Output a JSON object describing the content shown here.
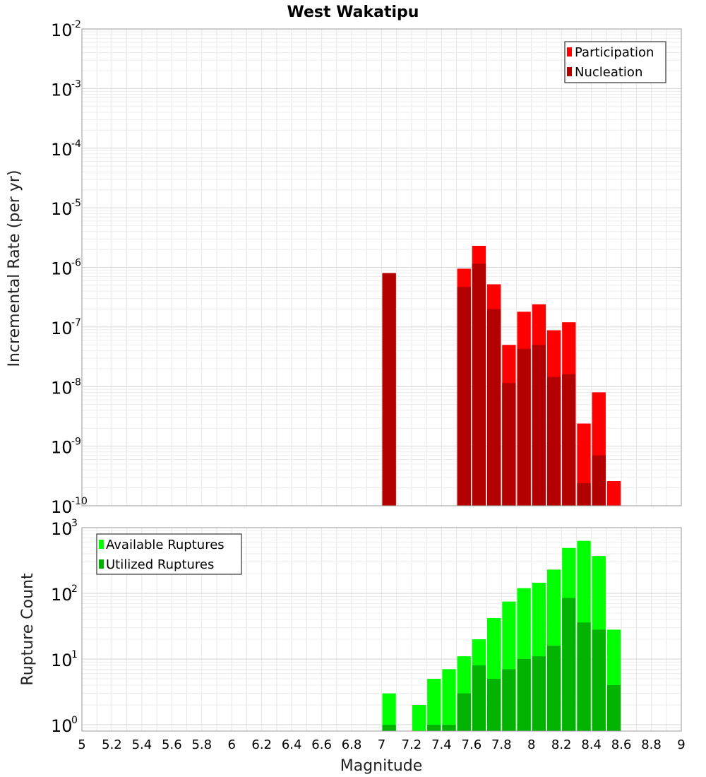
{
  "chart_data": [
    {
      "type": "bar",
      "title": "West Wakatipu",
      "xlabel": "",
      "ylabel": "Incremental Rate (per yr)",
      "yscale": "log",
      "xlim": [
        5,
        9
      ],
      "ylim": [
        1e-10,
        0.01
      ],
      "grid": true,
      "legend_position": "top-right",
      "y_tick_labels": [
        {
          "base": "10",
          "exp": "-2"
        },
        {
          "base": "10",
          "exp": "-3"
        },
        {
          "base": "10",
          "exp": "-4"
        },
        {
          "base": "10",
          "exp": "-5"
        },
        {
          "base": "10",
          "exp": "-6"
        },
        {
          "base": "10",
          "exp": "-7"
        },
        {
          "base": "10",
          "exp": "-8"
        },
        {
          "base": "10",
          "exp": "-9"
        },
        {
          "base": "10",
          "exp": "-10"
        }
      ],
      "x": [
        7.05,
        7.55,
        7.65,
        7.75,
        7.85,
        7.95,
        8.05,
        8.15,
        8.25,
        8.35,
        8.45,
        8.55
      ],
      "series": [
        {
          "name": "Participation",
          "color": "#ff0000",
          "values": [
            8e-07,
            9.5e-07,
            2.3e-06,
            5.2e-07,
            5e-08,
            1.8e-07,
            2.4e-07,
            8.8e-08,
            1.2e-07,
            2.4e-09,
            8e-09,
            2.6e-10
          ]
        },
        {
          "name": "Nucleation",
          "color": "#b30000",
          "values": [
            8e-07,
            4.7e-07,
            1.15e-06,
            2e-07,
            1.15e-08,
            4.3e-08,
            5e-08,
            1.45e-08,
            1.6e-08,
            2.4e-10,
            7e-10,
            null
          ]
        }
      ]
    },
    {
      "type": "bar",
      "title": "",
      "xlabel": "Magnitude",
      "ylabel": "Rupture Count",
      "yscale": "log",
      "xlim": [
        5,
        9
      ],
      "ylim": [
        0.8,
        1000
      ],
      "grid": true,
      "legend_position": "top-left",
      "y_tick_labels": [
        {
          "base": "10",
          "exp": "3"
        },
        {
          "base": "10",
          "exp": "2"
        },
        {
          "base": "10",
          "exp": "1"
        },
        {
          "base": "10",
          "exp": "0"
        }
      ],
      "x_tick_labels": [
        "5",
        "5.2",
        "5.4",
        "5.6",
        "5.8",
        "6",
        "6.2",
        "6.4",
        "6.6",
        "6.8",
        "7",
        "7.2",
        "7.4",
        "7.6",
        "7.8",
        "8",
        "8.2",
        "8.4",
        "8.6",
        "8.8",
        "9"
      ],
      "x": [
        7.05,
        7.25,
        7.35,
        7.45,
        7.55,
        7.65,
        7.75,
        7.85,
        7.95,
        8.05,
        8.15,
        8.25,
        8.35,
        8.45,
        8.55
      ],
      "series": [
        {
          "name": "Available Ruptures",
          "color": "#00ff00",
          "values": [
            3,
            2,
            5,
            7,
            11,
            20,
            42,
            75,
            120,
            145,
            230,
            490,
            630,
            370,
            28
          ]
        },
        {
          "name": "Utilized Ruptures",
          "color": "#00b300",
          "values": [
            1,
            null,
            1,
            1,
            3,
            8,
            5,
            7,
            10,
            11,
            16,
            85,
            36,
            28,
            4
          ]
        }
      ]
    }
  ]
}
